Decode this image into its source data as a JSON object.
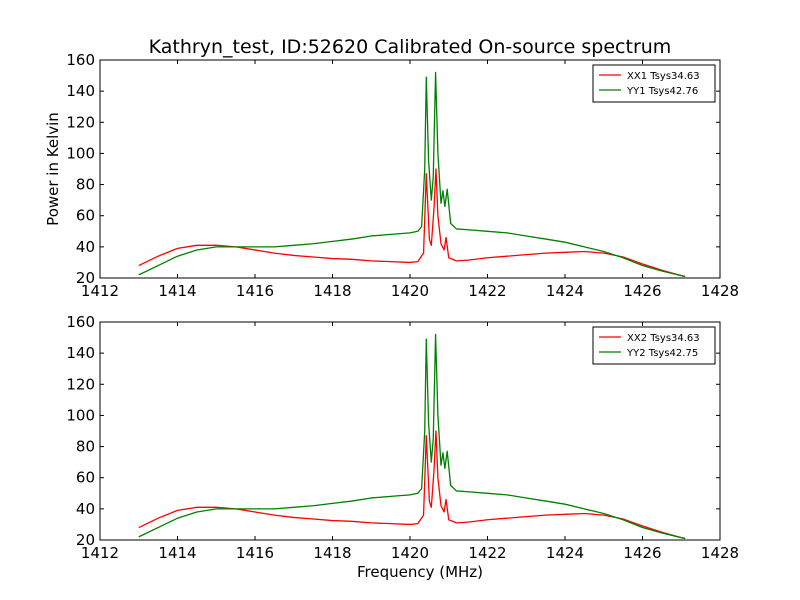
{
  "figure": {
    "title": "Kathryn_test, ID:52620 Calibrated On-source spectrum"
  },
  "chart_data": [
    {
      "type": "line",
      "xlabel": "",
      "ylabel": "Power in Kelvin",
      "xlim": [
        1412,
        1428
      ],
      "ylim": [
        20,
        160
      ],
      "xticks": [
        1412,
        1414,
        1416,
        1418,
        1420,
        1422,
        1424,
        1426,
        1428
      ],
      "yticks": [
        20,
        40,
        60,
        80,
        100,
        120,
        140,
        160
      ],
      "legend_position": "top-right",
      "grid": false,
      "series": [
        {
          "name": "XX1 Tsys34.63",
          "color": "#ff0000",
          "x": [
            1413.0,
            1413.5,
            1414.0,
            1414.5,
            1415.0,
            1415.5,
            1416.0,
            1416.5,
            1417.0,
            1417.5,
            1418.0,
            1418.5,
            1419.0,
            1419.5,
            1420.0,
            1420.2,
            1420.35,
            1420.42,
            1420.5,
            1420.55,
            1420.62,
            1420.67,
            1420.72,
            1420.8,
            1420.88,
            1420.93,
            1421.0,
            1421.2,
            1421.5,
            1422.0,
            1422.5,
            1423.0,
            1423.5,
            1424.0,
            1424.5,
            1425.0,
            1425.5,
            1426.0,
            1426.5,
            1427.0,
            1427.1
          ],
          "y": [
            28,
            34,
            39,
            41,
            41,
            40,
            38,
            36,
            34.5,
            33.5,
            32.5,
            32,
            31,
            30.5,
            30,
            30.5,
            36,
            87,
            45,
            41,
            65,
            90,
            60,
            42,
            38,
            46,
            33,
            31,
            31.5,
            33,
            34,
            35,
            36,
            36.5,
            37,
            36,
            33.5,
            29,
            25,
            21.5,
            21
          ]
        },
        {
          "name": "YY1 Tsys42.76",
          "color": "#008000",
          "x": [
            1413.0,
            1413.5,
            1414.0,
            1414.5,
            1415.0,
            1415.5,
            1416.0,
            1416.5,
            1417.0,
            1417.5,
            1418.0,
            1418.5,
            1419.0,
            1419.5,
            1420.0,
            1420.2,
            1420.3,
            1420.38,
            1420.42,
            1420.48,
            1420.55,
            1420.6,
            1420.66,
            1420.72,
            1420.8,
            1420.85,
            1420.9,
            1420.96,
            1421.05,
            1421.2,
            1421.5,
            1422.0,
            1422.5,
            1423.0,
            1423.5,
            1424.0,
            1424.5,
            1425.0,
            1425.5,
            1426.0,
            1426.5,
            1427.0,
            1427.1
          ],
          "y": [
            22,
            28,
            34,
            38,
            40,
            40,
            40,
            40,
            41,
            42,
            43.5,
            45,
            47,
            48,
            49,
            50,
            53,
            90,
            149,
            95,
            70,
            85,
            152,
            100,
            68,
            76,
            66,
            77,
            55,
            51.5,
            51,
            50,
            49,
            47,
            45,
            43,
            40,
            37,
            33,
            28,
            24.5,
            21.5,
            21
          ]
        }
      ]
    },
    {
      "type": "line",
      "xlabel": "Frequency (MHz)",
      "ylabel": "",
      "xlim": [
        1412,
        1428
      ],
      "ylim": [
        20,
        160
      ],
      "xticks": [
        1412,
        1414,
        1416,
        1418,
        1420,
        1422,
        1424,
        1426,
        1428
      ],
      "yticks": [
        20,
        40,
        60,
        80,
        100,
        120,
        140,
        160
      ],
      "legend_position": "top-right",
      "grid": false,
      "series": [
        {
          "name": "XX2 Tsys34.63",
          "color": "#ff0000",
          "x": [
            1413.0,
            1413.5,
            1414.0,
            1414.5,
            1415.0,
            1415.5,
            1416.0,
            1416.5,
            1417.0,
            1417.5,
            1418.0,
            1418.5,
            1419.0,
            1419.5,
            1420.0,
            1420.2,
            1420.35,
            1420.42,
            1420.5,
            1420.55,
            1420.62,
            1420.67,
            1420.72,
            1420.8,
            1420.88,
            1420.93,
            1421.0,
            1421.2,
            1421.5,
            1422.0,
            1422.5,
            1423.0,
            1423.5,
            1424.0,
            1424.5,
            1425.0,
            1425.5,
            1426.0,
            1426.5,
            1427.0,
            1427.1
          ],
          "y": [
            28,
            34,
            39,
            41,
            41,
            40,
            38,
            36,
            34.5,
            33.5,
            32.5,
            32,
            31,
            30.5,
            30,
            30.5,
            36,
            87,
            45,
            41,
            65,
            90,
            60,
            42,
            38,
            46,
            33,
            31,
            31.5,
            33,
            34,
            35,
            36,
            36.5,
            37,
            36,
            33.5,
            29,
            25,
            21.5,
            21
          ]
        },
        {
          "name": "YY2 Tsys42.75",
          "color": "#008000",
          "x": [
            1413.0,
            1413.5,
            1414.0,
            1414.5,
            1415.0,
            1415.5,
            1416.0,
            1416.5,
            1417.0,
            1417.5,
            1418.0,
            1418.5,
            1419.0,
            1419.5,
            1420.0,
            1420.2,
            1420.3,
            1420.38,
            1420.42,
            1420.48,
            1420.55,
            1420.6,
            1420.66,
            1420.72,
            1420.8,
            1420.85,
            1420.9,
            1420.96,
            1421.05,
            1421.2,
            1421.5,
            1422.0,
            1422.5,
            1423.0,
            1423.5,
            1424.0,
            1424.5,
            1425.0,
            1425.5,
            1426.0,
            1426.5,
            1427.0,
            1427.1
          ],
          "y": [
            22,
            28,
            34,
            38,
            40,
            40,
            40,
            40,
            41,
            42,
            43.5,
            45,
            47,
            48,
            49,
            50,
            53,
            90,
            149,
            95,
            70,
            85,
            152,
            100,
            68,
            76,
            66,
            77,
            55,
            51.5,
            51,
            50,
            49,
            47,
            45,
            43,
            40,
            37,
            33,
            28,
            24.5,
            21.5,
            21
          ]
        }
      ]
    }
  ]
}
